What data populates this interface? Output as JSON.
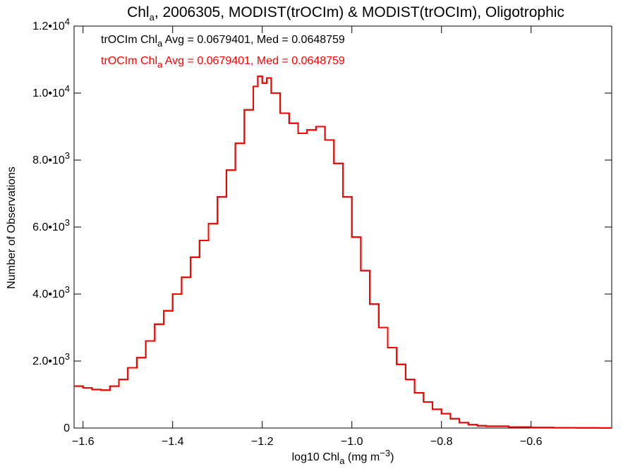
{
  "chart_data": {
    "type": "line",
    "title": {
      "main": "Chl",
      "sub": "a",
      "rest": ", 2006305, MODIST(trOCIm) & MODIST(trOCIm), Oligotrophic"
    },
    "xlabel": {
      "main": "log10 Chl",
      "sub": "a",
      "rest": " (mg m",
      "sup": "−3",
      "end": ")"
    },
    "ylabel": "Number of Observations",
    "xlim": [
      -1.62,
      -0.42
    ],
    "ylim": [
      0,
      12000
    ],
    "x_ticks": [
      {
        "value": -1.6,
        "label": "−1.6"
      },
      {
        "value": -1.4,
        "label": "−1.4"
      },
      {
        "value": -1.2,
        "label": "−1.2"
      },
      {
        "value": -1.0,
        "label": "−1.0"
      },
      {
        "value": -0.8,
        "label": "−0.8"
      },
      {
        "value": -0.6,
        "label": "−0.6"
      }
    ],
    "y_ticks": [
      {
        "value": 0,
        "mant": "0",
        "exp": ""
      },
      {
        "value": 2000,
        "mant": "2.0•10",
        "exp": "3"
      },
      {
        "value": 4000,
        "mant": "4.0•10",
        "exp": "3"
      },
      {
        "value": 6000,
        "mant": "6.0•10",
        "exp": "3"
      },
      {
        "value": 8000,
        "mant": "8.0•10",
        "exp": "3"
      },
      {
        "value": 10000,
        "mant": "1.0•10",
        "exp": "4"
      },
      {
        "value": 12000,
        "mant": "1.2•10",
        "exp": "4"
      }
    ],
    "grid": false,
    "legend_position": "top-left",
    "series": [
      {
        "name": "trOCIm",
        "color": "#000000",
        "stat_label": {
          "pre": "trOCIm Chl",
          "sub": "a",
          "post": " Avg = 0.0679401, Med = 0.0648759"
        },
        "x": [
          -1.62,
          -1.6,
          -1.58,
          -1.56,
          -1.54,
          -1.52,
          -1.5,
          -1.48,
          -1.46,
          -1.44,
          -1.42,
          -1.4,
          -1.38,
          -1.36,
          -1.34,
          -1.32,
          -1.3,
          -1.28,
          -1.26,
          -1.24,
          -1.22,
          -1.21,
          -1.2,
          -1.19,
          -1.18,
          -1.16,
          -1.14,
          -1.12,
          -1.1,
          -1.08,
          -1.06,
          -1.04,
          -1.02,
          -1.0,
          -0.98,
          -0.96,
          -0.94,
          -0.92,
          -0.9,
          -0.88,
          -0.86,
          -0.84,
          -0.82,
          -0.8,
          -0.78,
          -0.76,
          -0.74,
          -0.72,
          -0.7,
          -0.65,
          -0.6,
          -0.55,
          -0.5,
          -0.45,
          -0.42
        ],
        "y": [
          1250,
          1200,
          1150,
          1130,
          1250,
          1450,
          1800,
          2100,
          2600,
          3100,
          3500,
          4000,
          4500,
          5100,
          5600,
          6100,
          6900,
          7700,
          8500,
          9500,
          10200,
          10500,
          10300,
          10450,
          10000,
          9400,
          9100,
          8800,
          8900,
          9000,
          8600,
          7900,
          6900,
          5700,
          4700,
          3700,
          3000,
          2400,
          1900,
          1450,
          1050,
          780,
          560,
          430,
          280,
          160,
          100,
          70,
          55,
          30,
          15,
          8,
          5,
          3,
          2
        ]
      },
      {
        "name": "trOCIm",
        "color": "#ff0000",
        "stat_label": {
          "pre": "trOCIm Chl",
          "sub": "a",
          "post": " Avg = 0.0679401, Med = 0.0648759"
        },
        "x": [
          -1.62,
          -1.6,
          -1.58,
          -1.56,
          -1.54,
          -1.52,
          -1.5,
          -1.48,
          -1.46,
          -1.44,
          -1.42,
          -1.4,
          -1.38,
          -1.36,
          -1.34,
          -1.32,
          -1.3,
          -1.28,
          -1.26,
          -1.24,
          -1.22,
          -1.21,
          -1.2,
          -1.19,
          -1.18,
          -1.16,
          -1.14,
          -1.12,
          -1.1,
          -1.08,
          -1.06,
          -1.04,
          -1.02,
          -1.0,
          -0.98,
          -0.96,
          -0.94,
          -0.92,
          -0.9,
          -0.88,
          -0.86,
          -0.84,
          -0.82,
          -0.8,
          -0.78,
          -0.76,
          -0.74,
          -0.72,
          -0.7,
          -0.65,
          -0.6,
          -0.55,
          -0.5,
          -0.45,
          -0.42
        ],
        "y": [
          1250,
          1200,
          1150,
          1130,
          1250,
          1450,
          1800,
          2100,
          2600,
          3100,
          3500,
          4000,
          4500,
          5100,
          5600,
          6100,
          6900,
          7700,
          8500,
          9500,
          10200,
          10500,
          10300,
          10450,
          10000,
          9400,
          9100,
          8800,
          8900,
          9000,
          8600,
          7900,
          6900,
          5700,
          4700,
          3700,
          3000,
          2400,
          1900,
          1450,
          1050,
          780,
          560,
          430,
          280,
          160,
          100,
          70,
          55,
          30,
          15,
          8,
          5,
          3,
          2
        ]
      }
    ]
  }
}
